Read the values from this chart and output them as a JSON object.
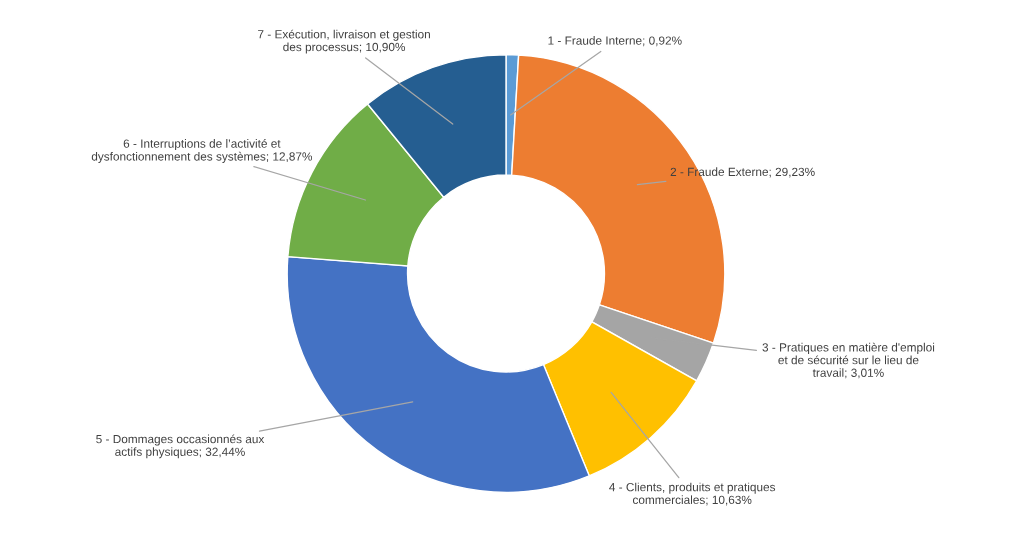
{
  "chart_data": {
    "type": "donut",
    "categories": [
      "1 - Fraude Interne",
      "2 - Fraude Externe",
      "3 - Pratiques en matière d'emploi\net de sécurité sur le lieu de\ntravail",
      "4 - Clients, produits et pratiques\ncommerciales",
      "5 - Dommages occasionnés aux\nactifs physiques",
      "6 - Interruptions de l’activité et\ndysfonctionnement des systèmes",
      "7 - Exécution, livraison et gestion\ndes processus"
    ],
    "values": [
      0.92,
      29.23,
      3.01,
      10.63,
      32.44,
      12.87,
      10.9
    ],
    "value_labels": [
      "0,92%",
      "29,23%",
      "3,01%",
      "10,63%",
      "32,44%",
      "12,87%",
      "10,90%"
    ],
    "colors": [
      "#5b9bd5",
      "#ed7d31",
      "#a5a5a5",
      "#ffc000",
      "#4472c4",
      "#70ad47",
      "#255e91"
    ]
  }
}
